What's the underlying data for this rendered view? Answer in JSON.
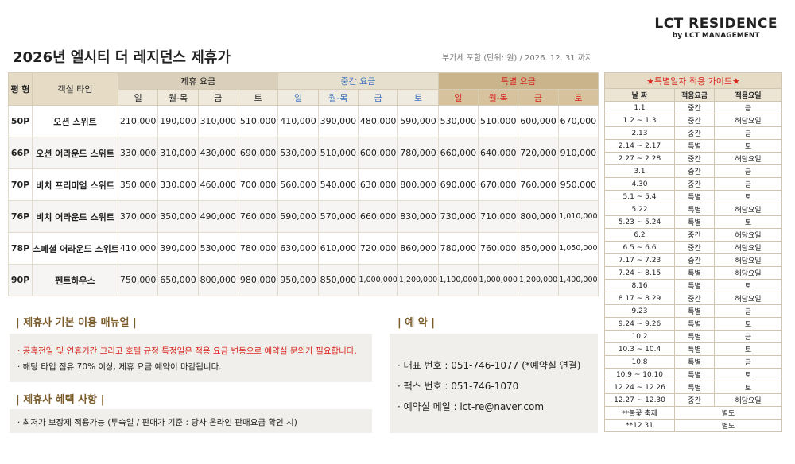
{
  "header": {
    "logo": "LCT RESIDENCE",
    "sub": "by LCT MANAGEMENT",
    "title": "2026년 엘시티 더 레지던스 제휴가",
    "note": "부가세 포함 (단위: 원) / 2026. 12. 31 까지"
  },
  "table": {
    "size_header": "평 형",
    "type_header": "객실 타입",
    "groups": [
      "제휴 요금",
      "중간 요금",
      "특별 요금"
    ],
    "days": [
      "일",
      "월-목",
      "금",
      "토"
    ],
    "rows": [
      {
        "size": "50P",
        "type": "오션 스위트",
        "prices": [
          "210,000",
          "190,000",
          "310,000",
          "510,000",
          "410,000",
          "390,000",
          "480,000",
          "590,000",
          "530,000",
          "510,000",
          "600,000",
          "670,000"
        ]
      },
      {
        "size": "66P",
        "type": "오션 어라운드 스위트",
        "prices": [
          "330,000",
          "310,000",
          "430,000",
          "690,000",
          "530,000",
          "510,000",
          "600,000",
          "780,000",
          "660,000",
          "640,000",
          "720,000",
          "910,000"
        ]
      },
      {
        "size": "70P",
        "type": "비치 프리미엄 스위트",
        "prices": [
          "350,000",
          "330,000",
          "460,000",
          "700,000",
          "560,000",
          "540,000",
          "630,000",
          "800,000",
          "690,000",
          "670,000",
          "760,000",
          "950,000"
        ]
      },
      {
        "size": "76P",
        "type": "비치 어라운드 스위트",
        "prices": [
          "370,000",
          "350,000",
          "490,000",
          "760,000",
          "590,000",
          "570,000",
          "660,000",
          "830,000",
          "730,000",
          "710,000",
          "800,000",
          "1,010,000"
        ]
      },
      {
        "size": "78P",
        "type": "스페셜 어라운드 스위트",
        "prices": [
          "410,000",
          "390,000",
          "530,000",
          "780,000",
          "630,000",
          "610,000",
          "720,000",
          "860,000",
          "780,000",
          "760,000",
          "850,000",
          "1,050,000"
        ]
      },
      {
        "size": "90P",
        "type": "펜트하우스",
        "prices": [
          "750,000",
          "650,000",
          "800,000",
          "980,000",
          "950,000",
          "850,000",
          "1,000,000",
          "1,200,000",
          "1,100,000",
          "1,000,000",
          "1,200,000",
          "1,400,000"
        ]
      }
    ]
  },
  "guide": {
    "title": "★특별일자 적용 가이드★",
    "headers": [
      "날 짜",
      "적용요금",
      "적용요일"
    ],
    "rows": [
      [
        "1.1",
        "중간",
        "금"
      ],
      [
        "1.2 ~ 1.3",
        "중간",
        "해당요일"
      ],
      [
        "2.13",
        "중간",
        "금"
      ],
      [
        "2.14 ~ 2.17",
        "특별",
        "토"
      ],
      [
        "2.27 ~ 2.28",
        "중간",
        "해당요일"
      ],
      [
        "3.1",
        "중간",
        "금"
      ],
      [
        "4.30",
        "중간",
        "금"
      ],
      [
        "5.1 ~ 5.4",
        "특별",
        "토"
      ],
      [
        "5.22",
        "특별",
        "해당요일"
      ],
      [
        "5.23 ~ 5.24",
        "특별",
        "토"
      ],
      [
        "6.2",
        "중간",
        "해당요일"
      ],
      [
        "6.5 ~ 6.6",
        "중간",
        "해당요일"
      ],
      [
        "7.17 ~ 7.23",
        "중간",
        "해당요일"
      ],
      [
        "7.24 ~ 8.15",
        "특별",
        "해당요일"
      ],
      [
        "8.16",
        "특별",
        "토"
      ],
      [
        "8.17 ~ 8.29",
        "중간",
        "해당요일"
      ],
      [
        "9.23",
        "특별",
        "금"
      ],
      [
        "9.24 ~ 9.26",
        "특별",
        "토"
      ],
      [
        "10.2",
        "특별",
        "금"
      ],
      [
        "10.3 ~ 10.4",
        "특별",
        "토"
      ],
      [
        "10.8",
        "특별",
        "금"
      ],
      [
        "10.9 ~ 10.10",
        "특별",
        "토"
      ],
      [
        "12.24 ~ 12.26",
        "특별",
        "토"
      ],
      [
        "12.27 ~ 12.30",
        "중간",
        "해당요일"
      ],
      [
        "**불꽃 축제",
        "별도"
      ],
      [
        "**12.31",
        "별도"
      ]
    ]
  },
  "manual": {
    "title": "| 제휴사 기본 이용 매뉴얼 |",
    "lines": [
      "· 공휴전일 및 연휴기간 그리고 호텔 규정 특정일은 적용 요금 변동으로 예약실 문의가 필요합니다.",
      "· 해당 타입 점유 70% 이상, 제휴 요금 예약이 마감됩니다."
    ]
  },
  "benefit": {
    "title": "| 제휴사 혜택 사항 |",
    "lines": [
      "· 최저가 보장제 적용가능 (투숙일 / 판매가 기준 : 당사 온라인  판매요금 확인 시)"
    ]
  },
  "reservation": {
    "title": "| 예 약 |",
    "lines": [
      "· 대표 번호 : 051-746-1077  (*예약실 연결)",
      "· 팩스 번호 : 051-746-1070",
      "· 예약실 메일 : lct-re@naver.com"
    ]
  }
}
